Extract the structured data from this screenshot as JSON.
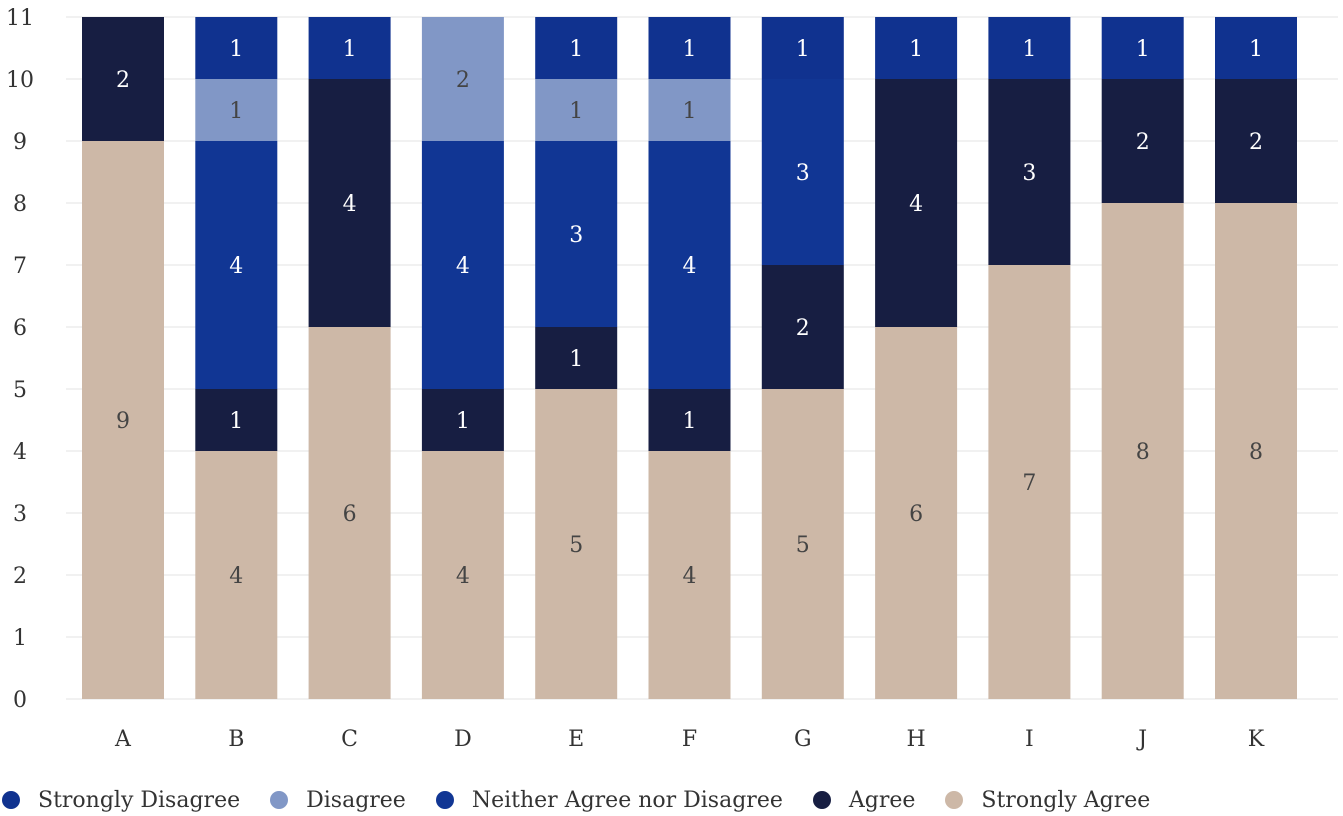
{
  "chart_data": {
    "type": "bar",
    "stacked": true,
    "categories": [
      "A",
      "B",
      "C",
      "D",
      "E",
      "F",
      "G",
      "H",
      "I",
      "J",
      "K"
    ],
    "ylim": [
      0,
      11
    ],
    "yticks": [
      "0",
      "1",
      "2",
      "3",
      "4",
      "5",
      "6",
      "7",
      "8",
      "9",
      "10",
      "11"
    ],
    "grid": true,
    "legend_position": "bottom-left",
    "series": [
      {
        "name": "Strongly Agree",
        "color": "#CDB8A7",
        "label_color": "#444444",
        "values": [
          9,
          4,
          6,
          4,
          5,
          4,
          5,
          6,
          7,
          8,
          8
        ]
      },
      {
        "name": "Agree",
        "color": "#171E42",
        "label_color": "#ffffff",
        "values": [
          2,
          1,
          4,
          1,
          1,
          1,
          2,
          4,
          3,
          2,
          2
        ]
      },
      {
        "name": "Neither Agree nor Disagree",
        "color": "#113694",
        "label_color": "#ffffff",
        "values": [
          0,
          4,
          0,
          4,
          3,
          4,
          3,
          0,
          0,
          0,
          0
        ]
      },
      {
        "name": "Disagree",
        "color": "#8197C6",
        "label_color": "#444444",
        "values": [
          0,
          1,
          0,
          2,
          1,
          1,
          0,
          0,
          0,
          0,
          0
        ]
      },
      {
        "name": "Strongly Disagree",
        "color": "#10328F",
        "label_color": "#ffffff",
        "values": [
          0,
          1,
          1,
          0,
          1,
          1,
          1,
          1,
          1,
          1,
          1
        ]
      }
    ],
    "legend_order": [
      "Strongly Disagree",
      "Disagree",
      "Neither Agree nor Disagree",
      "Agree",
      "Strongly Agree"
    ]
  }
}
